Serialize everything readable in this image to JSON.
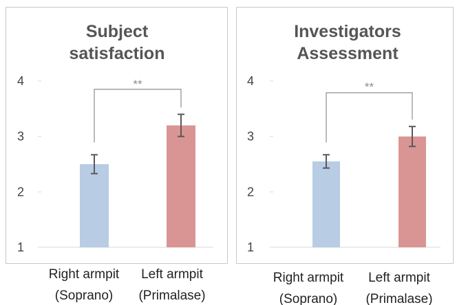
{
  "chart_data": [
    {
      "type": "bar",
      "title_lines": [
        "Subject",
        "satisfaction"
      ],
      "categories": [
        [
          "Right armpit",
          "(Soprano)"
        ],
        [
          "Left armpit",
          "(Primalase)"
        ]
      ],
      "values": [
        2.5,
        3.2
      ],
      "errors": [
        0.17,
        0.2
      ],
      "colors": [
        "#b8cce4",
        "#d99594"
      ],
      "ylim": [
        1,
        4
      ],
      "yticks": [
        "1",
        "2",
        "3",
        "4"
      ],
      "significance": "**",
      "grid": false
    },
    {
      "type": "bar",
      "title_lines": [
        "Investigators",
        "Assessment"
      ],
      "categories": [
        [
          "Right armpit",
          "(Soprano)"
        ],
        [
          "Left armpit",
          "(Primalase)"
        ]
      ],
      "values": [
        2.55,
        3.0
      ],
      "errors": [
        0.12,
        0.18
      ],
      "colors": [
        "#b8cce4",
        "#d99594"
      ],
      "ylim": [
        1,
        4
      ],
      "yticks": [
        "1",
        "2",
        "3",
        "4"
      ],
      "significance": "**",
      "grid": false
    }
  ]
}
